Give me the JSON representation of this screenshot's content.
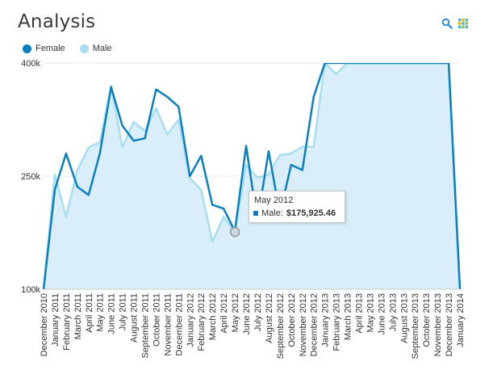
{
  "header": {
    "title": "Analysis"
  },
  "toolbar": {
    "search_icon": "search-icon",
    "grid_icon": "grid-icon"
  },
  "colors": {
    "female": "#0a80c0",
    "male": "#a8def2",
    "area": "#d9eef8",
    "grid": "#e8e8e8"
  },
  "tooltip": {
    "title": "May 2012",
    "series": "Male:",
    "value": "$175,925.46"
  },
  "chart_data": {
    "type": "line",
    "title": "Analysis",
    "xlabel": "",
    "ylabel": "",
    "ylim": [
      100000,
      400000
    ],
    "yticks": [
      "100k",
      "250k",
      "400k"
    ],
    "ytick_values": [
      100000,
      250000,
      400000
    ],
    "legend": "top-left",
    "grid": true,
    "x": [
      "December 2010",
      "January 2011",
      "February 2011",
      "March 2011",
      "April 2011",
      "May 2011",
      "June 2011",
      "July 2011",
      "August 2011",
      "September 2011",
      "October 2011",
      "November 2011",
      "December 2011",
      "January 2012",
      "February 2012",
      "March 2012",
      "April 2012",
      "May 2012",
      "June 2012",
      "July 2012",
      "August 2012",
      "September 2012",
      "October 2012",
      "November 2012",
      "December 2012",
      "January 2013",
      "February 2013",
      "March 2013",
      "April 2013",
      "May 2013",
      "June 2013",
      "July 2013",
      "August 2013",
      "September 2013",
      "October 2013",
      "November 2013",
      "December 2013",
      "January 2014"
    ],
    "series": [
      {
        "name": "Female",
        "area": false,
        "values": [
          100000,
          232000,
          280000,
          236000,
          225000,
          280000,
          368000,
          317000,
          297000,
          300000,
          365000,
          355000,
          342000,
          250000,
          277000,
          212000,
          207000,
          177000,
          290000,
          190000,
          283000,
          200000,
          265000,
          258000,
          355000,
          400000,
          400000,
          400000,
          400000,
          400000,
          400000,
          400000,
          400000,
          400000,
          400000,
          400000,
          400000,
          100000
        ]
      },
      {
        "name": "Male",
        "area": true,
        "values": [
          100000,
          252000,
          196000,
          258000,
          288000,
          295000,
          370000,
          288000,
          322000,
          310000,
          340000,
          305000,
          325000,
          247000,
          232000,
          163000,
          196000,
          175925,
          265000,
          248000,
          252000,
          278000,
          280000,
          289000,
          289000,
          400000,
          385000,
          400000,
          400000,
          400000,
          400000,
          400000,
          400000,
          400000,
          400000,
          400000,
          400000,
          100000
        ]
      }
    ]
  }
}
